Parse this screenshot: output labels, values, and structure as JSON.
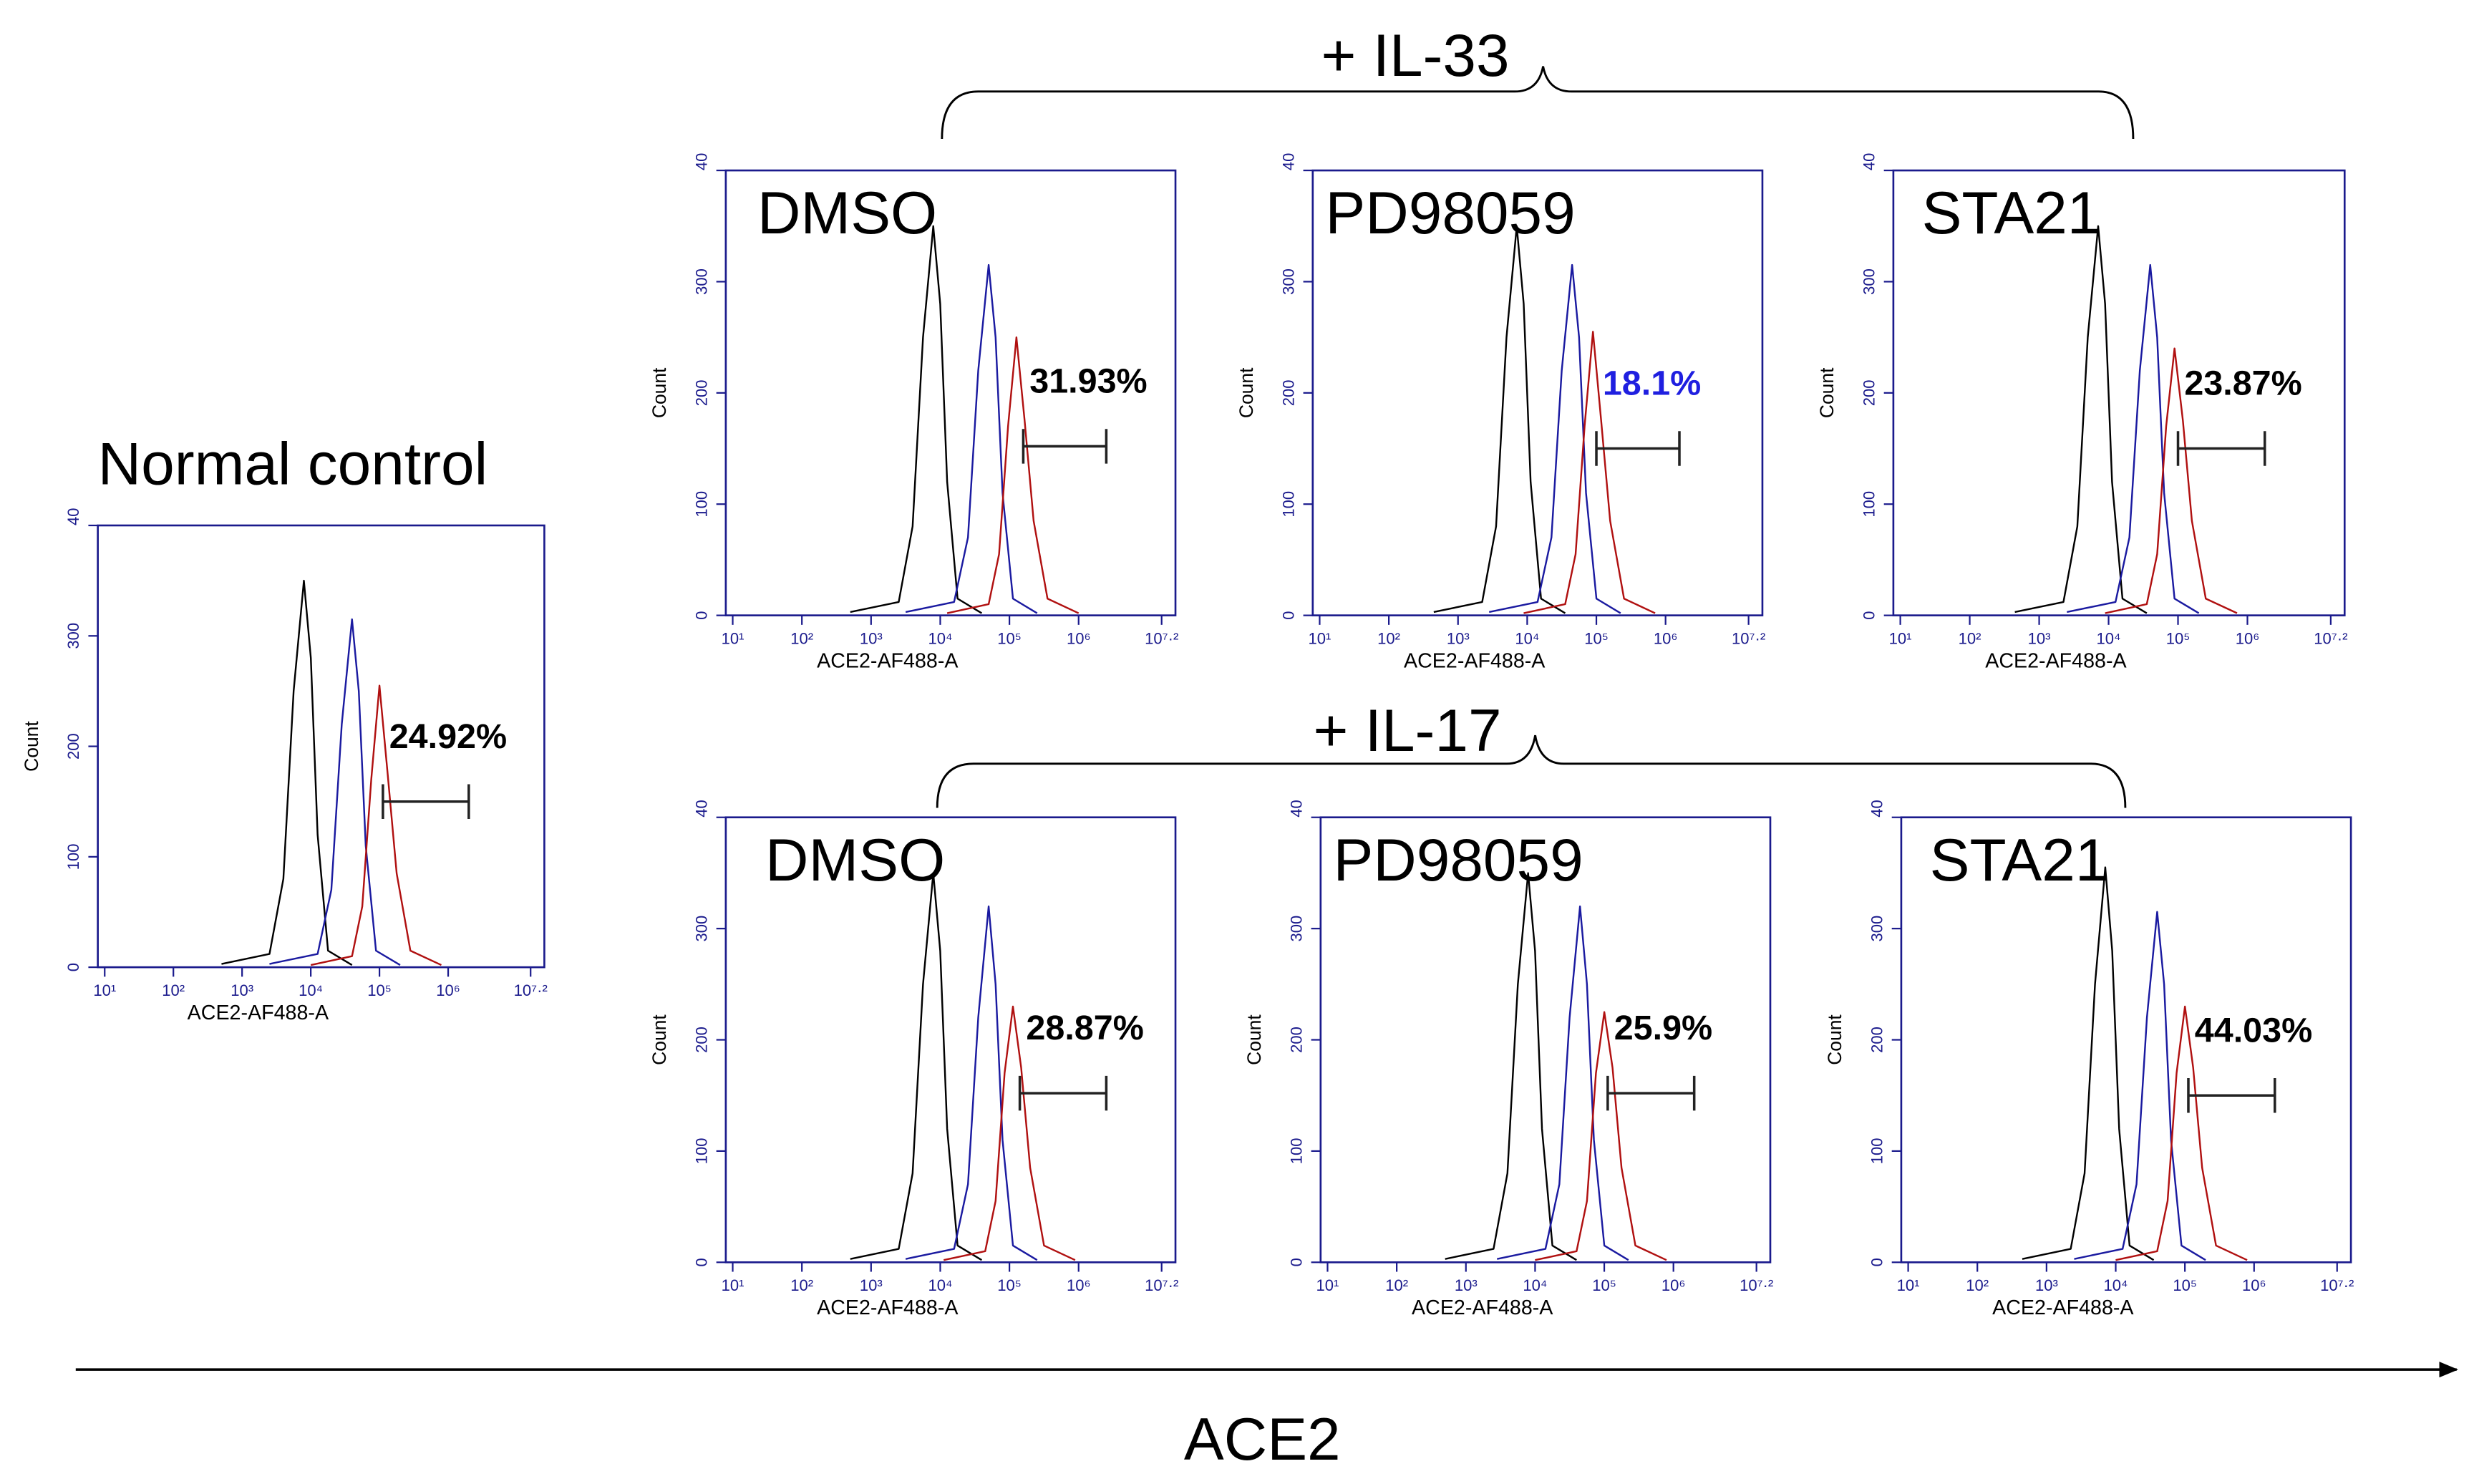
{
  "figure": {
    "groups": [
      "+ IL-33",
      "+ IL-17"
    ],
    "axis_label": "ACE2"
  },
  "chart_data": [
    {
      "type": "line",
      "title": "Normal control",
      "xlabel": "ACE2-AF488-A",
      "ylabel": "Count",
      "xlim": [
        0.9,
        7.4
      ],
      "ylim": [
        0,
        400
      ],
      "xticks": [
        {
          "value": 1,
          "label": "10¹"
        },
        {
          "value": 2,
          "label": "10²"
        },
        {
          "value": 3,
          "label": "10³"
        },
        {
          "value": 4,
          "label": "10⁴"
        },
        {
          "value": 5,
          "label": "10⁵"
        },
        {
          "value": 6,
          "label": "10⁶"
        },
        {
          "value": 7.2,
          "label": "10⁷·²"
        }
      ],
      "yticks": [
        0,
        100,
        200,
        300,
        {
          "value": 400,
          "label": "40"
        }
      ],
      "series": [
        {
          "color": "#000000",
          "x": [
            2.7,
            3.4,
            3.6,
            3.75,
            3.9,
            4.0,
            4.1,
            4.25,
            4.6
          ],
          "values": [
            3,
            12,
            80,
            250,
            350,
            280,
            120,
            15,
            2
          ]
        },
        {
          "color": "#1a1aa0",
          "x": [
            3.4,
            4.1,
            4.3,
            4.45,
            4.6,
            4.7,
            4.8,
            4.95,
            5.3
          ],
          "values": [
            3,
            12,
            70,
            220,
            315,
            250,
            110,
            15,
            2
          ]
        },
        {
          "color": "#b01010",
          "x": [
            4.0,
            4.6,
            4.75,
            4.88,
            5.0,
            5.12,
            5.25,
            5.45,
            5.9
          ],
          "values": [
            2,
            10,
            55,
            170,
            255,
            175,
            85,
            15,
            2
          ]
        }
      ],
      "gate": {
        "x": [
          5.05,
          6.3
        ],
        "y": 150,
        "label": "24.92%",
        "label_color": "#000000"
      }
    },
    {
      "type": "line",
      "title": "DMSO",
      "xlabel": "ACE2-AF488-A",
      "ylabel": "Count",
      "xlim": [
        0.9,
        7.4
      ],
      "ylim": [
        0,
        400
      ],
      "xticks": [
        {
          "value": 1,
          "label": "10¹"
        },
        {
          "value": 2,
          "label": "10²"
        },
        {
          "value": 3,
          "label": "10³"
        },
        {
          "value": 4,
          "label": "10⁴"
        },
        {
          "value": 5,
          "label": "10⁵"
        },
        {
          "value": 6,
          "label": "10⁶"
        },
        {
          "value": 7.2,
          "label": "10⁷·²"
        }
      ],
      "yticks": [
        0,
        100,
        200,
        300,
        {
          "value": 400,
          "label": "40"
        }
      ],
      "series": [
        {
          "color": "#000000",
          "x": [
            2.7,
            3.4,
            3.6,
            3.75,
            3.9,
            4.0,
            4.1,
            4.25,
            4.6
          ],
          "values": [
            3,
            12,
            80,
            250,
            350,
            280,
            120,
            15,
            2
          ]
        },
        {
          "color": "#1a1aa0",
          "x": [
            3.5,
            4.2,
            4.4,
            4.55,
            4.7,
            4.8,
            4.9,
            5.05,
            5.4
          ],
          "values": [
            3,
            12,
            70,
            220,
            315,
            250,
            110,
            15,
            2
          ]
        },
        {
          "color": "#b01010",
          "x": [
            4.1,
            4.7,
            4.85,
            4.98,
            5.1,
            5.22,
            5.35,
            5.55,
            6.0
          ],
          "values": [
            2,
            10,
            55,
            170,
            250,
            175,
            85,
            15,
            2
          ]
        }
      ],
      "gate": {
        "x": [
          5.2,
          6.4
        ],
        "y": 152,
        "label": "31.93%",
        "label_color": "#000000"
      }
    },
    {
      "type": "line",
      "title": "PD98059",
      "xlabel": "ACE2-AF488-A",
      "ylabel": "Count",
      "xlim": [
        0.9,
        7.4
      ],
      "ylim": [
        0,
        400
      ],
      "xticks": [
        {
          "value": 1,
          "label": "10¹"
        },
        {
          "value": 2,
          "label": "10²"
        },
        {
          "value": 3,
          "label": "10³"
        },
        {
          "value": 4,
          "label": "10⁴"
        },
        {
          "value": 5,
          "label": "10⁵"
        },
        {
          "value": 6,
          "label": "10⁶"
        },
        {
          "value": 7.2,
          "label": "10⁷·²"
        }
      ],
      "yticks": [
        0,
        100,
        200,
        300,
        {
          "value": 400,
          "label": "40"
        }
      ],
      "series": [
        {
          "color": "#000000",
          "x": [
            2.65,
            3.35,
            3.55,
            3.7,
            3.85,
            3.95,
            4.05,
            4.2,
            4.55
          ],
          "values": [
            3,
            12,
            80,
            250,
            350,
            280,
            120,
            15,
            2
          ]
        },
        {
          "color": "#1a1aa0",
          "x": [
            3.45,
            4.15,
            4.35,
            4.5,
            4.65,
            4.75,
            4.85,
            5.0,
            5.35
          ],
          "values": [
            3,
            12,
            70,
            220,
            315,
            250,
            110,
            15,
            2
          ]
        },
        {
          "color": "#b01010",
          "x": [
            3.95,
            4.55,
            4.7,
            4.83,
            4.95,
            5.07,
            5.2,
            5.4,
            5.85
          ],
          "values": [
            2,
            10,
            55,
            170,
            255,
            175,
            85,
            15,
            2
          ]
        }
      ],
      "gate": {
        "x": [
          5.0,
          6.2
        ],
        "y": 150,
        "label": "18.1%",
        "label_color": "#1f1fe0"
      }
    },
    {
      "type": "line",
      "title": "STA21",
      "xlabel": "ACE2-AF488-A",
      "ylabel": "Count",
      "xlim": [
        0.9,
        7.4
      ],
      "ylim": [
        0,
        400
      ],
      "xticks": [
        {
          "value": 1,
          "label": "10¹"
        },
        {
          "value": 2,
          "label": "10²"
        },
        {
          "value": 3,
          "label": "10³"
        },
        {
          "value": 4,
          "label": "10⁴"
        },
        {
          "value": 5,
          "label": "10⁵"
        },
        {
          "value": 6,
          "label": "10⁶"
        },
        {
          "value": 7.2,
          "label": "10⁷·²"
        }
      ],
      "yticks": [
        0,
        100,
        200,
        300,
        {
          "value": 400,
          "label": "40"
        }
      ],
      "series": [
        {
          "color": "#000000",
          "x": [
            2.65,
            3.35,
            3.55,
            3.7,
            3.85,
            3.95,
            4.05,
            4.2,
            4.55
          ],
          "values": [
            3,
            12,
            80,
            250,
            350,
            280,
            120,
            15,
            2
          ]
        },
        {
          "color": "#1a1aa0",
          "x": [
            3.4,
            4.1,
            4.3,
            4.45,
            4.6,
            4.7,
            4.8,
            4.95,
            5.3
          ],
          "values": [
            3,
            12,
            70,
            220,
            315,
            250,
            110,
            15,
            2
          ]
        },
        {
          "color": "#b01010",
          "x": [
            3.95,
            4.55,
            4.7,
            4.83,
            4.95,
            5.07,
            5.2,
            5.4,
            5.85
          ],
          "values": [
            2,
            10,
            55,
            170,
            240,
            175,
            85,
            15,
            2
          ]
        }
      ],
      "gate": {
        "x": [
          5.0,
          6.25
        ],
        "y": 150,
        "label": "23.87%",
        "label_color": "#000000"
      }
    },
    {
      "type": "line",
      "title": "DMSO",
      "xlabel": "ACE2-AF488-A",
      "ylabel": "Count",
      "xlim": [
        0.9,
        7.4
      ],
      "ylim": [
        0,
        400
      ],
      "xticks": [
        {
          "value": 1,
          "label": "10¹"
        },
        {
          "value": 2,
          "label": "10²"
        },
        {
          "value": 3,
          "label": "10³"
        },
        {
          "value": 4,
          "label": "10⁴"
        },
        {
          "value": 5,
          "label": "10⁵"
        },
        {
          "value": 6,
          "label": "10⁶"
        },
        {
          "value": 7.2,
          "label": "10⁷·²"
        }
      ],
      "yticks": [
        0,
        100,
        200,
        300,
        {
          "value": 400,
          "label": "40"
        }
      ],
      "series": [
        {
          "color": "#000000",
          "x": [
            2.7,
            3.4,
            3.6,
            3.75,
            3.9,
            4.0,
            4.1,
            4.25,
            4.6
          ],
          "values": [
            3,
            12,
            80,
            250,
            350,
            280,
            120,
            15,
            2
          ]
        },
        {
          "color": "#1a1aa0",
          "x": [
            3.5,
            4.2,
            4.4,
            4.55,
            4.7,
            4.8,
            4.9,
            5.05,
            5.4
          ],
          "values": [
            3,
            12,
            70,
            220,
            320,
            250,
            110,
            15,
            2
          ]
        },
        {
          "color": "#b01010",
          "x": [
            4.05,
            4.65,
            4.8,
            4.93,
            5.05,
            5.17,
            5.3,
            5.5,
            5.95
          ],
          "values": [
            2,
            10,
            55,
            170,
            230,
            175,
            85,
            15,
            2
          ]
        }
      ],
      "gate": {
        "x": [
          5.15,
          6.4
        ],
        "y": 152,
        "label": "28.87%",
        "label_color": "#000000"
      }
    },
    {
      "type": "line",
      "title": "PD98059",
      "xlabel": "ACE2-AF488-A",
      "ylabel": "Count",
      "xlim": [
        0.9,
        7.4
      ],
      "ylim": [
        0,
        400
      ],
      "xticks": [
        {
          "value": 1,
          "label": "10¹"
        },
        {
          "value": 2,
          "label": "10²"
        },
        {
          "value": 3,
          "label": "10³"
        },
        {
          "value": 4,
          "label": "10⁴"
        },
        {
          "value": 5,
          "label": "10⁵"
        },
        {
          "value": 6,
          "label": "10⁶"
        },
        {
          "value": 7.2,
          "label": "10⁷·²"
        }
      ],
      "yticks": [
        0,
        100,
        200,
        300,
        {
          "value": 400,
          "label": "40"
        }
      ],
      "series": [
        {
          "color": "#000000",
          "x": [
            2.7,
            3.4,
            3.6,
            3.75,
            3.9,
            4.0,
            4.1,
            4.25,
            4.6
          ],
          "values": [
            3,
            12,
            80,
            250,
            350,
            280,
            120,
            15,
            2
          ]
        },
        {
          "color": "#1a1aa0",
          "x": [
            3.45,
            4.15,
            4.35,
            4.5,
            4.65,
            4.75,
            4.85,
            5.0,
            5.35
          ],
          "values": [
            3,
            12,
            70,
            220,
            320,
            250,
            110,
            15,
            2
          ]
        },
        {
          "color": "#b01010",
          "x": [
            4.0,
            4.6,
            4.75,
            4.88,
            5.0,
            5.12,
            5.25,
            5.45,
            5.9
          ],
          "values": [
            2,
            10,
            55,
            170,
            225,
            175,
            85,
            15,
            2
          ]
        }
      ],
      "gate": {
        "x": [
          5.05,
          6.3
        ],
        "y": 152,
        "label": "25.9%",
        "label_color": "#000000"
      }
    },
    {
      "type": "line",
      "title": "STA21",
      "xlabel": "ACE2-AF488-A",
      "ylabel": "Count",
      "xlim": [
        0.9,
        7.4
      ],
      "ylim": [
        0,
        400
      ],
      "xticks": [
        {
          "value": 1,
          "label": "10¹"
        },
        {
          "value": 2,
          "label": "10²"
        },
        {
          "value": 3,
          "label": "10³"
        },
        {
          "value": 4,
          "label": "10⁴"
        },
        {
          "value": 5,
          "label": "10⁵"
        },
        {
          "value": 6,
          "label": "10⁶"
        },
        {
          "value": 7.2,
          "label": "10⁷·²"
        }
      ],
      "yticks": [
        0,
        100,
        200,
        300,
        {
          "value": 400,
          "label": "40"
        }
      ],
      "series": [
        {
          "color": "#000000",
          "x": [
            2.65,
            3.35,
            3.55,
            3.7,
            3.85,
            3.95,
            4.05,
            4.2,
            4.55
          ],
          "values": [
            3,
            12,
            80,
            250,
            355,
            280,
            120,
            15,
            2
          ]
        },
        {
          "color": "#1a1aa0",
          "x": [
            3.4,
            4.1,
            4.3,
            4.45,
            4.6,
            4.7,
            4.8,
            4.95,
            5.3
          ],
          "values": [
            3,
            12,
            70,
            220,
            315,
            250,
            110,
            15,
            2
          ]
        },
        {
          "color": "#b01010",
          "x": [
            4.0,
            4.6,
            4.75,
            4.88,
            5.0,
            5.12,
            5.25,
            5.45,
            5.9
          ],
          "values": [
            2,
            10,
            55,
            170,
            230,
            175,
            85,
            15,
            2
          ]
        }
      ],
      "gate": {
        "x": [
          5.05,
          6.3
        ],
        "y": 150,
        "label": "44.03%",
        "label_color": "#000000"
      }
    }
  ]
}
